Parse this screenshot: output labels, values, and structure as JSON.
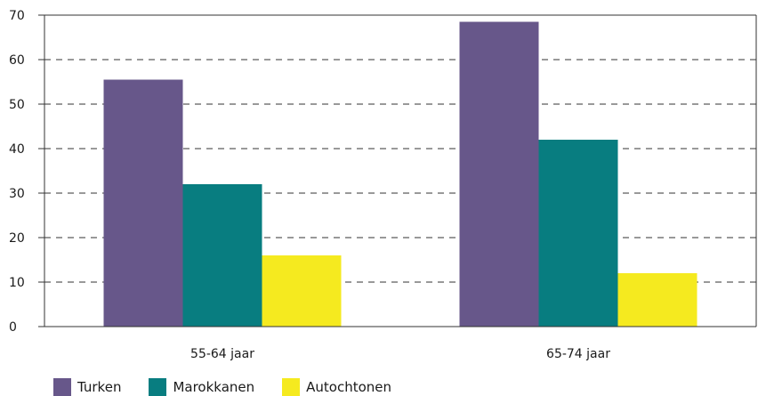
{
  "chart_data": {
    "type": "bar",
    "title": "",
    "xlabel": "",
    "ylabel": "",
    "categories": [
      "55-64 jaar",
      "65-74 jaar"
    ],
    "series": [
      {
        "name": "Turken",
        "values": [
          55.5,
          68.5
        ],
        "color": "#67578a"
      },
      {
        "name": "Marokkanen",
        "values": [
          32,
          42
        ],
        "color": "#087d80"
      },
      {
        "name": "Autochtonen",
        "values": [
          16,
          12
        ],
        "color": "#f5ea1f"
      }
    ],
    "ylim": [
      0,
      70
    ],
    "yticks": [
      0,
      10,
      20,
      30,
      40,
      50,
      60,
      70
    ],
    "grid": "dashed horizontal",
    "legend_position": "bottom-left"
  }
}
